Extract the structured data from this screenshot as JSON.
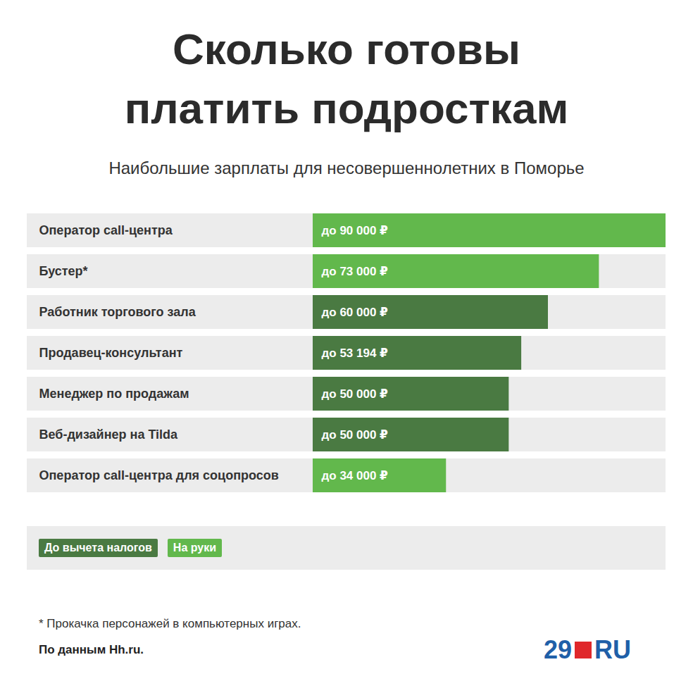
{
  "chart_data": {
    "type": "bar",
    "orientation": "horizontal",
    "title": "Сколько готовы платить подросткам",
    "subtitle": "Наибольшие зарплаты для несовершеннолетних в Поморье",
    "categories": [
      "Оператор call-центра",
      "Бустер*",
      "Работник торгового зала",
      "Продавец-консультант",
      "Менеджер по продажам",
      "Веб-дизайнер на Tilda",
      "Оператор call-центра для соцопросов"
    ],
    "series": [
      {
        "name": "До вычета налогов",
        "color": "#4a7a42",
        "values": [
          null,
          null,
          60000,
          53194,
          50000,
          50000,
          null
        ],
        "value_labels": [
          null,
          null,
          "до 60 000 ₽",
          "до 53 194 ₽",
          "до 50 000 ₽",
          "до 50 000 ₽",
          null
        ]
      },
      {
        "name": "На руки",
        "color": "#62b84c",
        "values": [
          90000,
          73000,
          null,
          null,
          null,
          null,
          34000
        ],
        "value_labels": [
          "до 90 000 ₽",
          "до 73 000 ₽",
          null,
          null,
          null,
          null,
          "до 34 000 ₽"
        ]
      }
    ],
    "xlim": [
      0,
      90000
    ],
    "xticks": [],
    "tick_labels": false,
    "data_labels": true,
    "legend": "bottom-left",
    "notes": [
      "* Прокачка персонажей в компьютерных играх.",
      "По данным Hh.ru."
    ],
    "logo": [
      "29",
      "RU"
    ]
  }
}
